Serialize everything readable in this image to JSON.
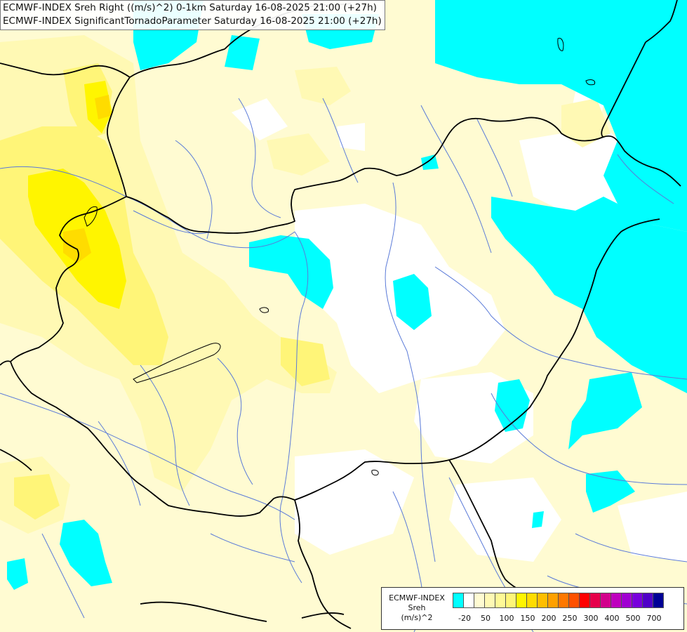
{
  "header": {
    "line1": "ECMWF-INDEX Sreh Right ((m/s)^2) 0-1km Saturday 16-08-2025 21:00 (+27h)",
    "line2": "ECMWF-INDEX SignificantTornadoParameter Saturday 16-08-2025 21:00 (+27h)"
  },
  "legend": {
    "title_line1": "ECMWF-INDEX",
    "title_line2": "Sreh",
    "unit": "(m/s)^2",
    "colors": [
      "#00ffff",
      "#ffffff",
      "#fffbd2",
      "#fff9b4",
      "#fff996",
      "#fff578",
      "#fff500",
      "#ffdc00",
      "#ffbe00",
      "#ffa000",
      "#ff7800",
      "#ff5000",
      "#ff0000",
      "#e6004b",
      "#d2008c",
      "#be00be",
      "#a000d2",
      "#7800dc",
      "#5000c8",
      "#000096"
    ],
    "ticks": [
      "-20",
      "50",
      "100",
      "150",
      "200",
      "250",
      "300",
      "400",
      "500",
      "700"
    ]
  },
  "colors": {
    "neg_cyan": "#00ffff",
    "pale_yellow": "#fffbd2",
    "light_yellow": "#fff9b4",
    "mid_yellow": "#fff578",
    "strong_yellow": "#fff500",
    "orange_yellow": "#ffdc00",
    "rivers": "#5a7ad8",
    "borders": "#000000"
  }
}
